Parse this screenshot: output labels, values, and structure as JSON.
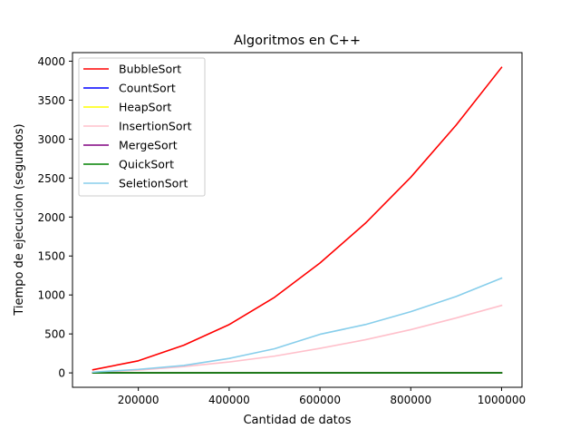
{
  "chart_data": {
    "type": "line",
    "title": "Algoritmos en C++",
    "xlabel": "Cantidad de datos",
    "ylabel": "Tiempo de ejecucion (segundos)",
    "xlim": [
      55000,
      1045000
    ],
    "ylim": [
      -185,
      4110
    ],
    "xticks": [
      200000,
      400000,
      600000,
      800000,
      1000000
    ],
    "xtick_labels": [
      "200000",
      "400000",
      "600000",
      "800000",
      "1000000"
    ],
    "yticks": [
      0,
      500,
      1000,
      1500,
      2000,
      2500,
      3000,
      3500,
      4000
    ],
    "ytick_labels": [
      "0",
      "500",
      "1000",
      "1500",
      "2000",
      "2500",
      "3000",
      "3500",
      "4000"
    ],
    "grid": false,
    "legend_position": "upper-left",
    "x": [
      100000,
      200000,
      300000,
      400000,
      500000,
      600000,
      700000,
      800000,
      900000,
      1000000
    ],
    "series": [
      {
        "name": "BubbleSort",
        "color": "#ff0000",
        "values": [
          40,
          155,
          355,
          620,
          970,
          1410,
          1920,
          2510,
          3180,
          3920
        ]
      },
      {
        "name": "CountSort",
        "color": "#0000ff",
        "values": [
          0,
          0,
          0,
          0,
          0,
          0,
          0,
          0,
          0,
          0
        ]
      },
      {
        "name": "HeapSort",
        "color": "#ffff00",
        "values": [
          0.1,
          0.2,
          0.3,
          0.4,
          0.5,
          0.6,
          0.7,
          0.8,
          0.9,
          1.0
        ]
      },
      {
        "name": "InsertionSort",
        "color": "#ffc0cb",
        "values": [
          8,
          35,
          80,
          140,
          215,
          315,
          425,
          555,
          705,
          865
        ]
      },
      {
        "name": "MergeSort",
        "color": "#800080",
        "values": [
          0.1,
          0.2,
          0.3,
          0.4,
          0.5,
          0.6,
          0.7,
          0.8,
          0.9,
          1.0
        ]
      },
      {
        "name": "QuickSort",
        "color": "#008000",
        "values": [
          0.1,
          0.2,
          0.3,
          0.4,
          0.5,
          0.6,
          0.7,
          0.8,
          0.9,
          1.0
        ]
      },
      {
        "name": "SeletionSort",
        "color": "#87ceeb",
        "values": [
          10,
          45,
          95,
          185,
          310,
          495,
          620,
          785,
          980,
          1215
        ]
      }
    ]
  }
}
